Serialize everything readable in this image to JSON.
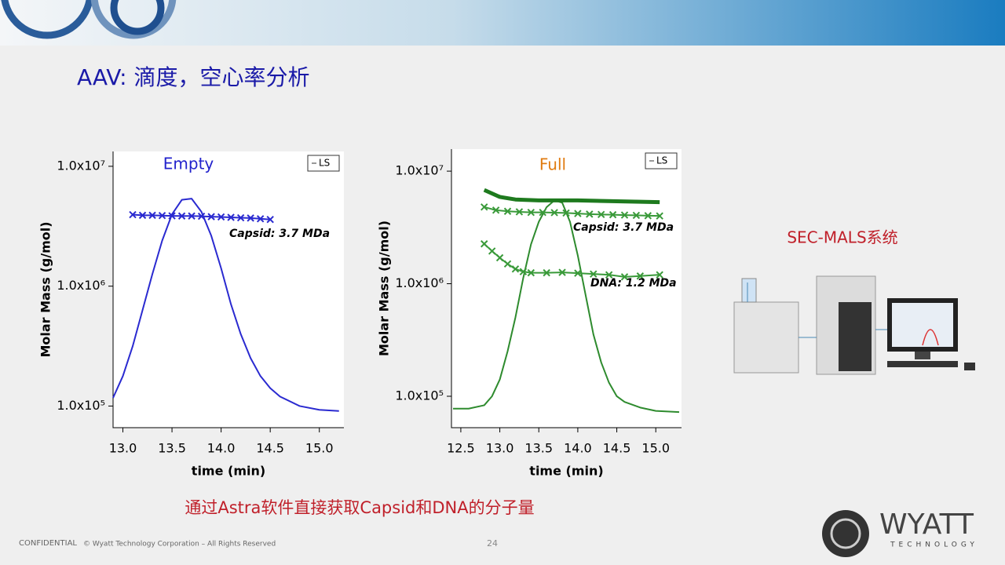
{
  "slide": {
    "title": "AAV: 滴度，空心率分析",
    "side_label": "SEC-MALS系统",
    "caption": "通过Astra软件直接获取Capsid和DNA的分子量",
    "footer": {
      "confidential": "CONFIDENTIAL",
      "copyright": "© Wyatt Technology Corporation – All Rights Reserved",
      "page": "24"
    },
    "logo": {
      "name": "WYATT",
      "sub": "TECHNOLOGY"
    }
  },
  "chart_data": [
    {
      "type": "line",
      "title": "Empty",
      "title_color": "#2222cc",
      "x_label": "time (min)",
      "y_label": "Molar Mass (g/mol)",
      "log_y": true,
      "legend": "upper right",
      "xlim": [
        12.9,
        15.25
      ],
      "xticks": [
        {
          "value": 13,
          "label": "13.0"
        },
        {
          "value": 13.5,
          "label": "13.5"
        },
        {
          "value": 14,
          "label": "14.0"
        },
        {
          "value": 14.5,
          "label": "14.5"
        },
        {
          "value": 15,
          "label": "15.0"
        }
      ],
      "ylim": [
        66000,
        13300000
      ],
      "yticks": [
        {
          "value": 100000,
          "label": "1.0x10⁵"
        },
        {
          "value": 1000000,
          "label": "1.0x10⁶"
        },
        {
          "value": 10000000,
          "label": "1.0x10⁷"
        }
      ],
      "annotations": [
        "Capsid: 3.7 MDa"
      ],
      "series": [
        {
          "name": "LS",
          "color": "#2a2ad0",
          "x": [
            12.9,
            13.0,
            13.1,
            13.2,
            13.3,
            13.4,
            13.5,
            13.6,
            13.7,
            13.8,
            13.9,
            14.0,
            14.1,
            14.2,
            14.3,
            14.4,
            14.5,
            14.6,
            14.8,
            15.0,
            15.2
          ],
          "values": [
            117000,
            178000,
            316000,
            631000,
            1260000,
            2400000,
            3980000,
            5250000,
            5370000,
            4170000,
            2630000,
            1410000,
            708000,
            398000,
            251000,
            178000,
            141000,
            120000,
            100000,
            93000,
            91000
          ]
        },
        {
          "color": "#2a2ad0",
          "marker": "x",
          "x": [
            13.1,
            13.2,
            13.3,
            13.4,
            13.5,
            13.6,
            13.7,
            13.8,
            13.9,
            14.0,
            14.1,
            14.2,
            14.3,
            14.4,
            14.5
          ],
          "values": [
            3950000,
            3900000,
            3900000,
            3880000,
            3860000,
            3850000,
            3850000,
            3830000,
            3800000,
            3780000,
            3750000,
            3720000,
            3700000,
            3650000,
            3600000
          ]
        }
      ]
    },
    {
      "type": "line",
      "title": "Full",
      "title_color": "#e07b10",
      "x_label": "time (min)",
      "y_label": "Molar Mass (g/mol)",
      "log_y": true,
      "legend": "upper right",
      "xlim": [
        12.38,
        15.33
      ],
      "xticks": [
        {
          "value": 12.5,
          "label": "12.5"
        },
        {
          "value": 13,
          "label": "13.0"
        },
        {
          "value": 13.5,
          "label": "13.5"
        },
        {
          "value": 14,
          "label": "14.0"
        },
        {
          "value": 14.5,
          "label": "14.5"
        },
        {
          "value": 15,
          "label": "15.0"
        }
      ],
      "ylim": [
        52600,
        15700000
      ],
      "yticks": [
        {
          "value": 100000,
          "label": "1.0x10⁵"
        },
        {
          "value": 1000000,
          "label": "1.0x10⁶"
        },
        {
          "value": 10000000,
          "label": "1.0x10⁷"
        }
      ],
      "annotations": [
        "Capsid: 3.7 MDa",
        "DNA: 1.2 MDa"
      ],
      "series": [
        {
          "name": "LS",
          "color": "#2e8b2e",
          "x": [
            12.4,
            12.6,
            12.8,
            12.9,
            13.0,
            13.1,
            13.2,
            13.3,
            13.4,
            13.5,
            13.6,
            13.7,
            13.8,
            13.9,
            14.0,
            14.1,
            14.2,
            14.3,
            14.4,
            14.5,
            14.6,
            14.8,
            15.0,
            15.3
          ],
          "values": [
            77600,
            77600,
            83200,
            100000,
            141000,
            251000,
            501000,
            1120000,
            2240000,
            3550000,
            4790000,
            5500000,
            5250000,
            3550000,
            1780000,
            794000,
            355000,
            200000,
            132000,
            100000,
            89100,
            79400,
            74100,
            72400
          ]
        },
        {
          "color": "#1e7a1e",
          "x": [
            12.8,
            13.0,
            13.2,
            13.5,
            14.0,
            14.5,
            15.05
          ],
          "values": [
            6800000,
            5900000,
            5600000,
            5500000,
            5500000,
            5400000,
            5300000
          ]
        },
        {
          "color": "#3a9a3a",
          "marker": "x",
          "x": [
            12.8,
            12.95,
            13.1,
            13.25,
            13.4,
            13.55,
            13.7,
            13.85,
            14.0,
            14.15,
            14.3,
            14.45,
            14.6,
            14.75,
            14.9,
            15.05
          ],
          "values": [
            4800000,
            4500000,
            4400000,
            4350000,
            4300000,
            4300000,
            4280000,
            4250000,
            4200000,
            4150000,
            4120000,
            4100000,
            4070000,
            4050000,
            4020000,
            4000000
          ]
        },
        {
          "color": "#3a9a3a",
          "marker": "x",
          "x": [
            12.8,
            12.9,
            13.0,
            13.1,
            13.2,
            13.3,
            13.4,
            13.6,
            13.8,
            14.0,
            14.2,
            14.4,
            14.6,
            14.8,
            15.05
          ],
          "values": [
            2260000,
            1950000,
            1700000,
            1500000,
            1350000,
            1280000,
            1250000,
            1250000,
            1260000,
            1240000,
            1220000,
            1200000,
            1150000,
            1170000,
            1200000
          ]
        }
      ]
    }
  ]
}
